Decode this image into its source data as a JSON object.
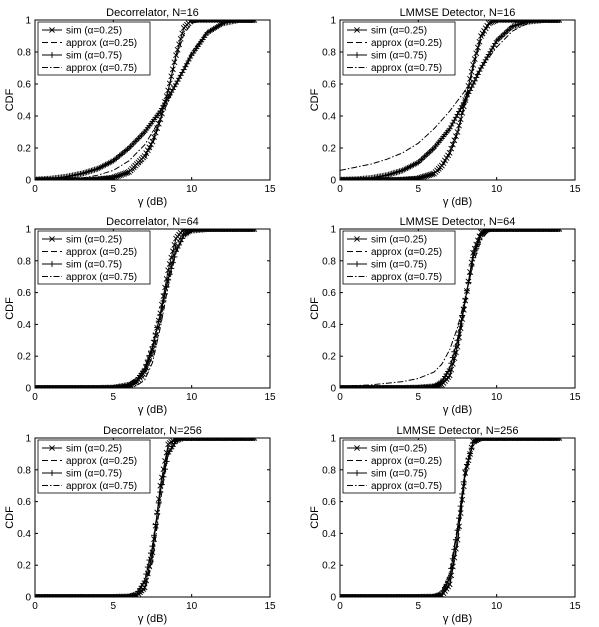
{
  "figure": {
    "xlabel": "γ (dB)",
    "ylabel": "CDF",
    "legend_labels": [
      "sim (α=0.25)",
      "approx (α=0.25)",
      "sim (α=0.75)",
      "approx (α=0.75)"
    ],
    "legend_placement": "top-left",
    "grid": false
  },
  "chart_data": [
    {
      "type": "line",
      "title": "Decorrelator, N=16",
      "xlabel": "γ (dB)",
      "ylabel": "CDF",
      "xlim": [
        0,
        15
      ],
      "ylim": [
        0,
        1
      ],
      "xticks": [
        0,
        5,
        10,
        15
      ],
      "yticks": [
        0,
        0.2,
        0.4,
        0.6,
        0.8,
        1
      ],
      "series": [
        {
          "name": "sim (α=0.25)",
          "style": "x-marker",
          "x": [
            0,
            1,
            2,
            3,
            4,
            5,
            6,
            7,
            7.5,
            8,
            8.5,
            9,
            9.5,
            10,
            11,
            12,
            14
          ],
          "y": [
            0,
            0,
            0,
            0,
            0.005,
            0.015,
            0.05,
            0.15,
            0.24,
            0.38,
            0.56,
            0.78,
            0.95,
            1,
            1,
            1,
            1
          ]
        },
        {
          "name": "approx (α=0.25)",
          "style": "dashed",
          "x": [
            0,
            1,
            2,
            3,
            4,
            5,
            6,
            7,
            7.5,
            8,
            8.5,
            9,
            9.5,
            10,
            11,
            12,
            14
          ],
          "y": [
            0,
            0,
            0,
            0,
            0.004,
            0.012,
            0.04,
            0.13,
            0.22,
            0.37,
            0.56,
            0.76,
            0.91,
            0.98,
            1,
            1,
            1
          ]
        },
        {
          "name": "sim (α=0.75)",
          "style": "plus-marker",
          "x": [
            0,
            1,
            2,
            3,
            4,
            5,
            6,
            7,
            8,
            9,
            10,
            11,
            12,
            13,
            14
          ],
          "y": [
            0.002,
            0.008,
            0.02,
            0.04,
            0.07,
            0.12,
            0.2,
            0.3,
            0.43,
            0.6,
            0.78,
            0.92,
            0.98,
            1,
            1
          ]
        },
        {
          "name": "approx (α=0.75)",
          "style": "dashdot",
          "x": [
            0,
            1,
            2,
            3,
            4,
            5,
            6,
            7,
            8,
            9,
            10,
            11,
            12,
            13,
            14
          ],
          "y": [
            0,
            0.001,
            0.004,
            0.012,
            0.03,
            0.06,
            0.12,
            0.22,
            0.38,
            0.6,
            0.8,
            0.93,
            0.98,
            1,
            1
          ]
        }
      ]
    },
    {
      "type": "line",
      "title": "LMMSE Detector, N=16",
      "xlabel": "γ (dB)",
      "ylabel": "CDF",
      "xlim": [
        0,
        15
      ],
      "ylim": [
        0,
        1
      ],
      "xticks": [
        0,
        5,
        10,
        15
      ],
      "yticks": [
        0,
        0.2,
        0.4,
        0.6,
        0.8,
        1
      ],
      "series": [
        {
          "name": "sim (α=0.25)",
          "style": "x-marker",
          "x": [
            0,
            1,
            2,
            3,
            4,
            5,
            6,
            6.5,
            7,
            7.5,
            8,
            8.5,
            9,
            9.5,
            10,
            11,
            14
          ],
          "y": [
            0,
            0,
            0,
            0,
            0.003,
            0.01,
            0.04,
            0.09,
            0.17,
            0.3,
            0.5,
            0.72,
            0.9,
            0.98,
            1,
            1,
            1
          ]
        },
        {
          "name": "approx (α=0.25)",
          "style": "dashed",
          "x": [
            0,
            1,
            2,
            3,
            4,
            5,
            6,
            6.5,
            7,
            7.5,
            8,
            8.5,
            9,
            9.5,
            10,
            11,
            14
          ],
          "y": [
            0,
            0,
            0,
            0,
            0.002,
            0.008,
            0.03,
            0.08,
            0.16,
            0.29,
            0.48,
            0.7,
            0.88,
            0.97,
            1,
            1,
            1
          ]
        },
        {
          "name": "sim (α=0.75)",
          "style": "plus-marker",
          "x": [
            0,
            1,
            2,
            3,
            4,
            5,
            6,
            7,
            8,
            9,
            10,
            11,
            12,
            13,
            14
          ],
          "y": [
            0.001,
            0.004,
            0.012,
            0.03,
            0.06,
            0.11,
            0.2,
            0.32,
            0.5,
            0.7,
            0.87,
            0.96,
            0.99,
            1,
            1
          ]
        },
        {
          "name": "approx (α=0.75)",
          "style": "dashdot",
          "x": [
            0,
            1,
            2,
            3,
            4,
            5,
            6,
            7,
            8,
            9,
            10,
            11,
            12,
            13,
            14
          ],
          "y": [
            0.06,
            0.08,
            0.1,
            0.13,
            0.17,
            0.23,
            0.32,
            0.43,
            0.56,
            0.7,
            0.83,
            0.93,
            0.98,
            1,
            1
          ]
        }
      ]
    },
    {
      "type": "line",
      "title": "Decorrelator, N=64",
      "xlabel": "γ (dB)",
      "ylabel": "CDF",
      "xlim": [
        0,
        15
      ],
      "ylim": [
        0,
        1
      ],
      "xticks": [
        0,
        5,
        10,
        15
      ],
      "yticks": [
        0,
        0.2,
        0.4,
        0.6,
        0.8,
        1
      ],
      "series": [
        {
          "name": "sim (α=0.25)",
          "style": "x-marker",
          "x": [
            0,
            2,
            4,
            5,
            6,
            6.5,
            7,
            7.5,
            8,
            8.5,
            9,
            9.5,
            10,
            11,
            14
          ],
          "y": [
            0,
            0,
            0,
            0,
            0.01,
            0.04,
            0.1,
            0.24,
            0.47,
            0.74,
            0.94,
            1,
            1,
            1,
            1
          ]
        },
        {
          "name": "approx (α=0.25)",
          "style": "dashed",
          "x": [
            0,
            2,
            4,
            5,
            6,
            6.5,
            7,
            7.5,
            8,
            8.5,
            9,
            9.5,
            10,
            11,
            14
          ],
          "y": [
            0,
            0,
            0,
            0,
            0.01,
            0.03,
            0.08,
            0.2,
            0.42,
            0.7,
            0.9,
            0.98,
            1,
            1,
            1
          ]
        },
        {
          "name": "sim (α=0.75)",
          "style": "plus-marker",
          "x": [
            0,
            2,
            4,
            5,
            6,
            6.5,
            7,
            7.5,
            8,
            8.5,
            9,
            9.5,
            10,
            11,
            14
          ],
          "y": [
            0,
            0,
            0,
            0.002,
            0.02,
            0.05,
            0.12,
            0.26,
            0.46,
            0.68,
            0.86,
            0.96,
            0.99,
            1,
            1
          ]
        },
        {
          "name": "approx (α=0.75)",
          "style": "dashdot",
          "x": [
            0,
            2,
            4,
            5,
            6,
            6.5,
            7,
            7.5,
            8,
            8.5,
            9,
            9.5,
            10,
            11,
            14
          ],
          "y": [
            0,
            0,
            0,
            0,
            0.005,
            0.015,
            0.05,
            0.16,
            0.38,
            0.64,
            0.85,
            0.96,
            0.99,
            1,
            1
          ]
        }
      ]
    },
    {
      "type": "line",
      "title": "LMMSE Detector, N=64",
      "xlabel": "γ (dB)",
      "ylabel": "CDF",
      "xlim": [
        0,
        15
      ],
      "ylim": [
        0,
        1
      ],
      "xticks": [
        0,
        5,
        10,
        15
      ],
      "yticks": [
        0,
        0.2,
        0.4,
        0.6,
        0.8,
        1
      ],
      "series": [
        {
          "name": "sim (α=0.25)",
          "style": "x-marker",
          "x": [
            0,
            2,
            4,
            5,
            6,
            6.5,
            7,
            7.5,
            8,
            8.5,
            9,
            9.5,
            10,
            11,
            14
          ],
          "y": [
            0,
            0,
            0,
            0,
            0.005,
            0.02,
            0.08,
            0.26,
            0.55,
            0.85,
            0.98,
            1,
            1,
            1,
            1
          ]
        },
        {
          "name": "approx (α=0.25)",
          "style": "dashed",
          "x": [
            0,
            2,
            4,
            5,
            6,
            6.5,
            7,
            7.5,
            8,
            8.5,
            9,
            9.5,
            10,
            11,
            14
          ],
          "y": [
            0,
            0,
            0,
            0,
            0.004,
            0.02,
            0.07,
            0.24,
            0.52,
            0.83,
            0.97,
            1,
            1,
            1,
            1
          ]
        },
        {
          "name": "sim (α=0.75)",
          "style": "plus-marker",
          "x": [
            0,
            2,
            4,
            5,
            6,
            6.5,
            7,
            7.5,
            8,
            8.5,
            9,
            9.5,
            10,
            11,
            14
          ],
          "y": [
            0,
            0,
            0,
            0.002,
            0.01,
            0.04,
            0.12,
            0.3,
            0.56,
            0.82,
            0.96,
            1,
            1,
            1,
            1
          ]
        },
        {
          "name": "approx (α=0.75)",
          "style": "dashdot",
          "x": [
            0,
            2,
            4,
            5,
            6,
            6.5,
            7,
            7.5,
            8,
            8.5,
            9,
            9.5,
            10,
            11,
            14
          ],
          "y": [
            0.01,
            0.02,
            0.04,
            0.06,
            0.1,
            0.15,
            0.24,
            0.38,
            0.57,
            0.78,
            0.93,
            0.99,
            1,
            1,
            1
          ]
        }
      ]
    },
    {
      "type": "line",
      "title": "Decorrelator, N=256",
      "xlabel": "γ (dB)",
      "ylabel": "CDF",
      "xlim": [
        0,
        15
      ],
      "ylim": [
        0,
        1
      ],
      "xticks": [
        0,
        5,
        10,
        15
      ],
      "yticks": [
        0,
        0.2,
        0.4,
        0.6,
        0.8,
        1
      ],
      "series": [
        {
          "name": "sim (α=0.25)",
          "style": "x-marker",
          "x": [
            0,
            2,
            4,
            5,
            6,
            6.5,
            7,
            7.5,
            8,
            8.5,
            9,
            9.5,
            10,
            14
          ],
          "y": [
            0,
            0,
            0,
            0,
            0,
            0.01,
            0.06,
            0.28,
            0.7,
            0.96,
            1,
            1,
            1,
            1
          ]
        },
        {
          "name": "approx (α=0.25)",
          "style": "dashed",
          "x": [
            0,
            2,
            4,
            5,
            6,
            6.5,
            7,
            7.5,
            8,
            8.5,
            9,
            9.5,
            10,
            14
          ],
          "y": [
            0,
            0,
            0,
            0,
            0,
            0.008,
            0.05,
            0.25,
            0.66,
            0.94,
            1,
            1,
            1,
            1
          ]
        },
        {
          "name": "sim (α=0.75)",
          "style": "plus-marker",
          "x": [
            0,
            2,
            4,
            5,
            6,
            6.5,
            7,
            7.5,
            8,
            8.5,
            9,
            9.5,
            10,
            14
          ],
          "y": [
            0,
            0,
            0,
            0,
            0.003,
            0.02,
            0.1,
            0.32,
            0.66,
            0.9,
            0.98,
            1,
            1,
            1
          ]
        },
        {
          "name": "approx (α=0.75)",
          "style": "dashdot",
          "x": [
            0,
            2,
            4,
            5,
            6,
            6.5,
            7,
            7.5,
            8,
            8.5,
            9,
            9.5,
            10,
            14
          ],
          "y": [
            0,
            0,
            0,
            0,
            0,
            0.005,
            0.04,
            0.22,
            0.6,
            0.9,
            0.99,
            1,
            1,
            1
          ]
        }
      ]
    },
    {
      "type": "line",
      "title": "LMMSE Detector, N=256",
      "xlabel": "γ (dB)",
      "ylabel": "CDF",
      "xlim": [
        0,
        15
      ],
      "ylim": [
        0,
        1
      ],
      "xticks": [
        0,
        5,
        10,
        15
      ],
      "yticks": [
        0,
        0.2,
        0.4,
        0.6,
        0.8,
        1
      ],
      "series": [
        {
          "name": "sim (α=0.25)",
          "style": "x-marker",
          "x": [
            0,
            2,
            4,
            5,
            6,
            6.5,
            7,
            7.5,
            8,
            8.5,
            9,
            9.5,
            10,
            14
          ],
          "y": [
            0,
            0,
            0,
            0,
            0,
            0.01,
            0.08,
            0.36,
            0.78,
            0.98,
            1,
            1,
            1,
            1
          ]
        },
        {
          "name": "approx (α=0.25)",
          "style": "dashed",
          "x": [
            0,
            2,
            4,
            5,
            6,
            6.5,
            7,
            7.5,
            8,
            8.5,
            9,
            9.5,
            10,
            14
          ],
          "y": [
            0,
            0,
            0,
            0,
            0,
            0.008,
            0.07,
            0.33,
            0.75,
            0.97,
            1,
            1,
            1,
            1
          ]
        },
        {
          "name": "sim (α=0.75)",
          "style": "plus-marker",
          "x": [
            0,
            2,
            4,
            5,
            6,
            6.5,
            7,
            7.5,
            8,
            8.5,
            9,
            9.5,
            10,
            14
          ],
          "y": [
            0,
            0,
            0,
            0,
            0.002,
            0.02,
            0.12,
            0.42,
            0.8,
            0.97,
            1,
            1,
            1,
            1
          ]
        },
        {
          "name": "approx (α=0.75)",
          "style": "dashdot",
          "x": [
            0,
            2,
            4,
            5,
            6,
            6.5,
            7,
            7.5,
            8,
            8.5,
            9,
            9.5,
            10,
            14
          ],
          "y": [
            0,
            0,
            0,
            0,
            0.01,
            0.04,
            0.15,
            0.44,
            0.8,
            0.97,
            1,
            1,
            1,
            1
          ]
        }
      ]
    }
  ]
}
